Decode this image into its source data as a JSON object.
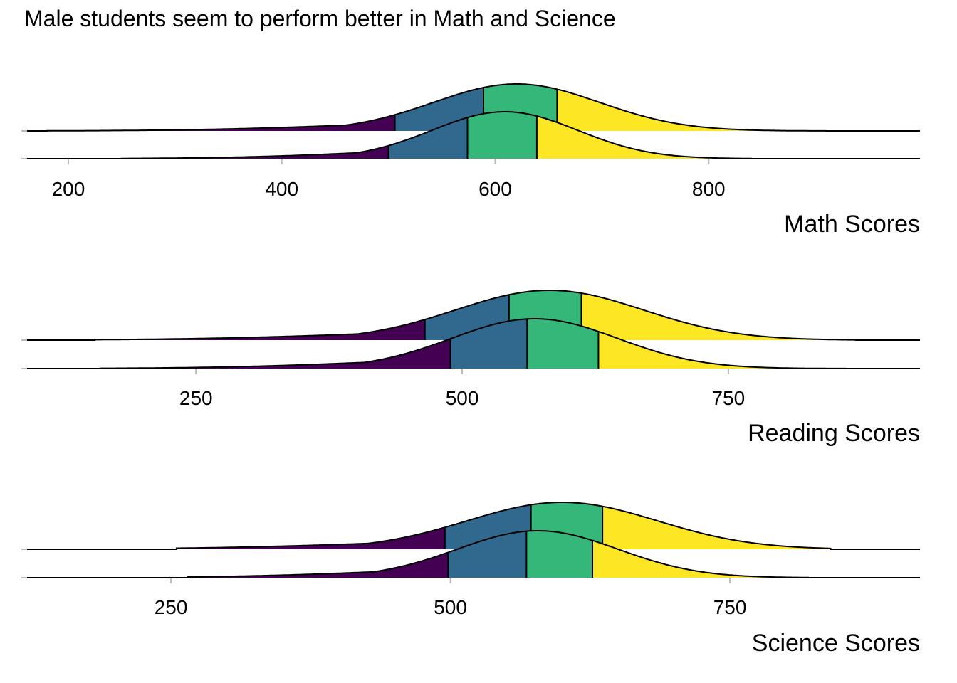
{
  "title": "Male students seem to perform better in Math and Science",
  "colors": {
    "quartile_1": "#440154",
    "quartile_2": "#31688E",
    "quartile_3": "#35B779",
    "quartile_4": "#FDE725",
    "outline": "#000000"
  },
  "chart_data": [
    {
      "type": "area",
      "subtype": "ridgeline-density-quartiles",
      "xlabel": "Math Scores",
      "xticks": [
        200,
        400,
        600,
        800
      ],
      "xlim": [
        160,
        998
      ],
      "ridges": [
        {
          "row": "upper",
          "range": [
            180,
            910
          ],
          "peak": 620,
          "sd": 78,
          "skew": 6.5,
          "quartiles": [
            506,
            589,
            658
          ]
        },
        {
          "row": "lower",
          "range": [
            250,
            840
          ],
          "peak": 609,
          "sd": 68,
          "skew": 5.8,
          "quartiles": [
            500,
            574,
            639
          ]
        }
      ]
    },
    {
      "type": "area",
      "subtype": "ridgeline-density-quartiles",
      "xlabel": "Reading Scores",
      "xticks": [
        250,
        500,
        750
      ],
      "xlim": [
        90,
        930
      ],
      "ridges": [
        {
          "row": "upper",
          "range": [
            155,
            870
          ],
          "peak": 582,
          "sd": 88,
          "skew": 8,
          "quartiles": [
            465,
            544,
            612
          ]
        },
        {
          "row": "lower",
          "range": [
            160,
            860
          ],
          "peak": 568,
          "sd": 78,
          "skew": 8,
          "quartiles": [
            489,
            561,
            628
          ]
        }
      ]
    },
    {
      "type": "area",
      "subtype": "ridgeline-density-quartiles",
      "xlabel": "Science Scores",
      "xticks": [
        250,
        500,
        750
      ],
      "xlim": [
        120,
        920
      ],
      "ridges": [
        {
          "row": "upper",
          "range": [
            255,
            840
          ],
          "peak": 600,
          "sd": 85,
          "skew": 7,
          "quartiles": [
            495,
            572,
            636
          ]
        },
        {
          "row": "lower",
          "range": [
            265,
            820
          ],
          "peak": 578,
          "sd": 72,
          "skew": 6.5,
          "quartiles": [
            498,
            568,
            627
          ]
        }
      ]
    }
  ]
}
